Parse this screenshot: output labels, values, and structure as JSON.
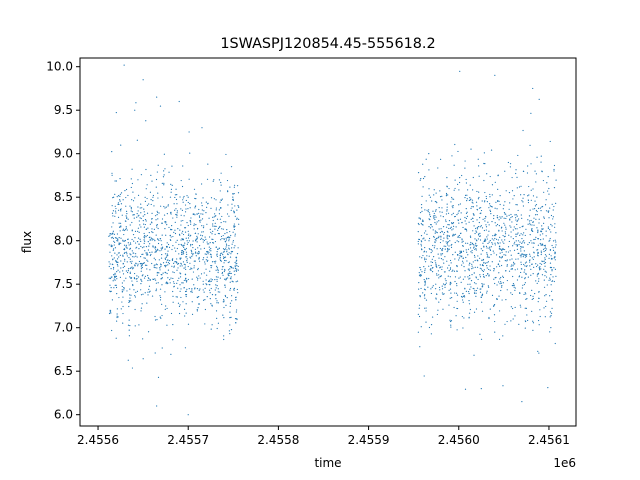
{
  "chart_data": {
    "type": "scatter",
    "title": "1SWASPJ120854.45-555618.2",
    "xlabel": "time",
    "ylabel": "flux",
    "x_offset_label": "1e6",
    "xlim": [
      2455580,
      2456130
    ],
    "ylim": [
      5.87,
      10.1
    ],
    "x_ticks": [
      2455600,
      2455700,
      2455800,
      2455900,
      2456000,
      2456100
    ],
    "x_tick_labels": [
      "2.4556",
      "2.4557",
      "2.4558",
      "2.4559",
      "2.4560",
      "2.4561"
    ],
    "y_ticks": [
      6.0,
      6.5,
      7.0,
      7.5,
      8.0,
      8.5,
      9.0,
      9.5,
      10.0
    ],
    "y_tick_labels": [
      "6.0",
      "6.5",
      "7.0",
      "7.5",
      "8.0",
      "8.5",
      "9.0",
      "9.5",
      "10.0"
    ],
    "grid": false,
    "marker_color": "#1f77b4",
    "series": [
      {
        "segments": [
          {
            "x_start": 2455612,
            "x_end": 2455756,
            "center": 7.9,
            "spread": 0.35
          },
          {
            "x_start": 2455955,
            "x_end": 2456108,
            "center": 7.95,
            "spread": 0.38
          }
        ],
        "points": [
          [
            2455612,
            8.05
          ],
          [
            2455618,
            7.95
          ],
          [
            2455625,
            8.2
          ],
          [
            2455632,
            7.85
          ],
          [
            2455640,
            8.3
          ],
          [
            2455648,
            7.7
          ],
          [
            2455655,
            7.6
          ],
          [
            2455662,
            8.4
          ],
          [
            2455670,
            8.0
          ],
          [
            2455678,
            7.75
          ],
          [
            2455685,
            8.35
          ],
          [
            2455692,
            7.8
          ],
          [
            2455700,
            8.5
          ],
          [
            2455708,
            7.9
          ],
          [
            2455715,
            8.1
          ],
          [
            2455722,
            7.85
          ],
          [
            2455730,
            8.2
          ],
          [
            2455738,
            7.7
          ],
          [
            2455745,
            8.0
          ],
          [
            2455752,
            7.75
          ],
          [
            2455960,
            7.4
          ],
          [
            2455968,
            7.9
          ],
          [
            2455975,
            8.1
          ],
          [
            2455982,
            7.85
          ],
          [
            2455990,
            8.0
          ],
          [
            2455998,
            8.3
          ],
          [
            2456005,
            7.8
          ],
          [
            2456012,
            7.6
          ],
          [
            2456020,
            8.0
          ],
          [
            2456028,
            7.5
          ],
          [
            2456035,
            8.4
          ],
          [
            2456042,
            7.7
          ],
          [
            2456050,
            8.2
          ],
          [
            2456058,
            8.1
          ],
          [
            2456065,
            7.9
          ],
          [
            2456072,
            8.0
          ],
          [
            2456080,
            8.0
          ],
          [
            2456087,
            8.3
          ],
          [
            2456094,
            7.9
          ],
          [
            2456102,
            8.1
          ],
          [
            2455665,
            9.65
          ],
          [
            2455690,
            9.6
          ],
          [
            2455701,
            9.25
          ],
          [
            2455650,
            9.85
          ],
          [
            2456040,
            9.9
          ],
          [
            2456082,
            9.75
          ],
          [
            2455665,
            6.1
          ],
          [
            2455700,
            6.0
          ],
          [
            2456025,
            6.3
          ],
          [
            2456070,
            6.15
          ]
        ]
      }
    ]
  }
}
